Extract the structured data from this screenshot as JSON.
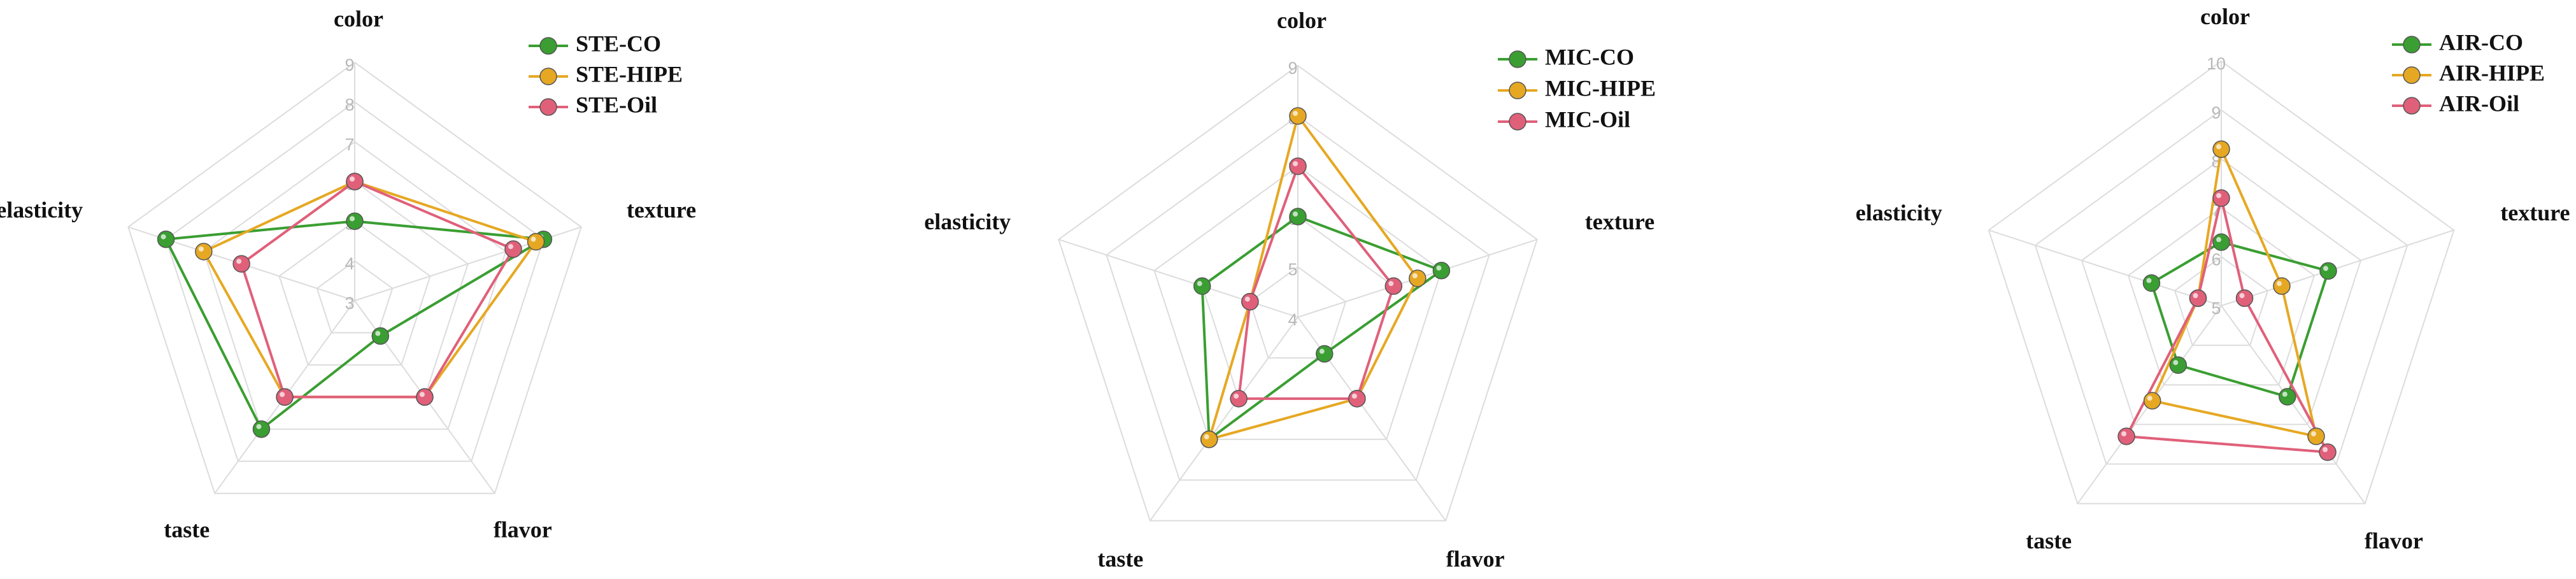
{
  "chart_data": [
    {
      "type": "radar",
      "categories": [
        "color",
        "texture",
        "flavor",
        "taste",
        "elasticity"
      ],
      "rlim": [
        3,
        9
      ],
      "rticks": [
        3,
        4,
        5,
        6,
        7,
        8,
        9
      ],
      "series": [
        {
          "name": "STE-CO",
          "color": "#3a9e32",
          "values": [
            5,
            8,
            4.1,
            7,
            8
          ]
        },
        {
          "name": "STE-HIPE",
          "color": "#e6a823",
          "values": [
            6,
            7.8,
            6,
            6,
            7
          ]
        },
        {
          "name": "STE-Oil",
          "color": "#e0607a",
          "values": [
            6,
            7.2,
            6,
            6,
            6
          ]
        }
      ]
    },
    {
      "type": "radar",
      "categories": [
        "color",
        "texture",
        "flavor",
        "taste",
        "elasticity"
      ],
      "rlim": [
        4,
        9
      ],
      "rticks": [
        4,
        5,
        6,
        7,
        8,
        9
      ],
      "series": [
        {
          "name": "MIC-CO",
          "color": "#3a9e32",
          "values": [
            6,
            7,
            4.9,
            7,
            6
          ]
        },
        {
          "name": "MIC-HIPE",
          "color": "#e6a823",
          "values": [
            8,
            6.5,
            6,
            7,
            5
          ]
        },
        {
          "name": "MIC-Oil",
          "color": "#e0607a",
          "values": [
            7,
            6,
            6,
            6,
            5
          ]
        }
      ]
    },
    {
      "type": "radar",
      "categories": [
        "color",
        "texture",
        "flavor",
        "taste",
        "elasticity"
      ],
      "rlim": [
        5,
        10
      ],
      "rticks": [
        5,
        6,
        7,
        8,
        9,
        10
      ],
      "series": [
        {
          "name": "AIR-CO",
          "color": "#3a9e32",
          "values": [
            6.3,
            7.3,
            7.3,
            6.5,
            6.5
          ]
        },
        {
          "name": "AIR-HIPE",
          "color": "#e6a823",
          "values": [
            8.2,
            6.3,
            8.3,
            7.4,
            5.5
          ]
        },
        {
          "name": "AIR-Oil",
          "color": "#e0607a",
          "values": [
            7.2,
            5.5,
            8.7,
            8.3,
            5.5
          ]
        }
      ]
    }
  ]
}
